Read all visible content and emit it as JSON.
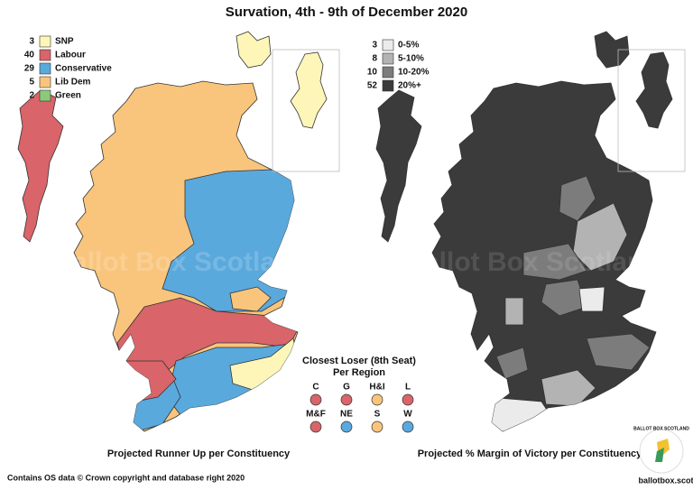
{
  "title": "Survation, 4th - 9th of December 2020",
  "left_legend": {
    "items": [
      {
        "count": 3,
        "label": "SNP",
        "color": "#fdf6b8"
      },
      {
        "count": 40,
        "label": "Labour",
        "color": "#d9646a"
      },
      {
        "count": 29,
        "label": "Conservative",
        "color": "#5aa9dd"
      },
      {
        "count": 5,
        "label": "Lib Dem",
        "color": "#f9c57c"
      },
      {
        "count": 2,
        "label": "Green",
        "color": "#8cc97a"
      }
    ]
  },
  "right_legend": {
    "items": [
      {
        "count": 3,
        "label": "0-5%",
        "color": "#ebebeb"
      },
      {
        "count": 8,
        "label": "5-10%",
        "color": "#b3b3b3"
      },
      {
        "count": 10,
        "label": "10-20%",
        "color": "#7c7c7c"
      },
      {
        "count": 52,
        "label": "20%+",
        "color": "#3b3b3b"
      }
    ]
  },
  "left_caption": "Projected Runner Up per Constituency",
  "right_caption": "Projected % Margin of Victory per Constituency",
  "closest_loser": {
    "title": "Closest Loser (8th Seat)",
    "subtitle": "Per Region",
    "regions": [
      {
        "label": "C",
        "color": "#d9646a"
      },
      {
        "label": "G",
        "color": "#d9646a"
      },
      {
        "label": "H&I",
        "color": "#f9c57c"
      },
      {
        "label": "L",
        "color": "#d9646a"
      },
      {
        "label": "M&F",
        "color": "#d9646a"
      },
      {
        "label": "NE",
        "color": "#5aa9dd"
      },
      {
        "label": "S",
        "color": "#f9c57c"
      },
      {
        "label": "W",
        "color": "#5aa9dd"
      }
    ]
  },
  "watermark": "Ballot Box Scotland",
  "footer": "Contains OS data © Crown copyright and database right 2020",
  "logo": {
    "name": "BALLOT BOX SCOTLAND",
    "url": "ballotbox.scot"
  }
}
